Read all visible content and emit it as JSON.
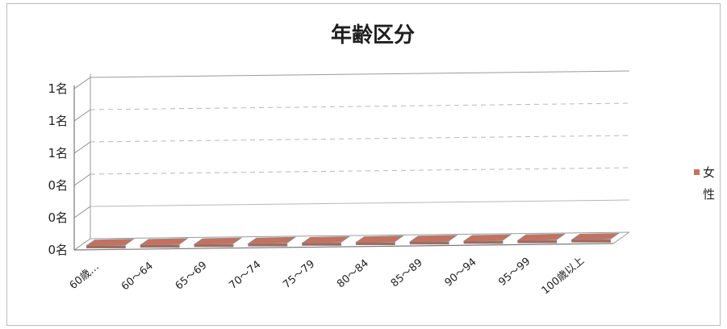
{
  "chart_data": {
    "type": "bar",
    "title": "年齢区分",
    "categories": [
      "60歳…",
      "60～64",
      "65～69",
      "70～74",
      "75～79",
      "80～84",
      "85～89",
      "90～94",
      "95～99",
      "100歳以上"
    ],
    "series": [
      {
        "name": "女性",
        "values": [
          0,
          0,
          0,
          0,
          0,
          0,
          0,
          0,
          0,
          0
        ],
        "color": "#c8705e"
      }
    ],
    "y_tick_labels": [
      "0名",
      "0名",
      "0名",
      "1名",
      "1名",
      "1名"
    ],
    "ylim": [
      0,
      1
    ],
    "grid": true,
    "legend_position": "right",
    "bar_3d": true
  }
}
